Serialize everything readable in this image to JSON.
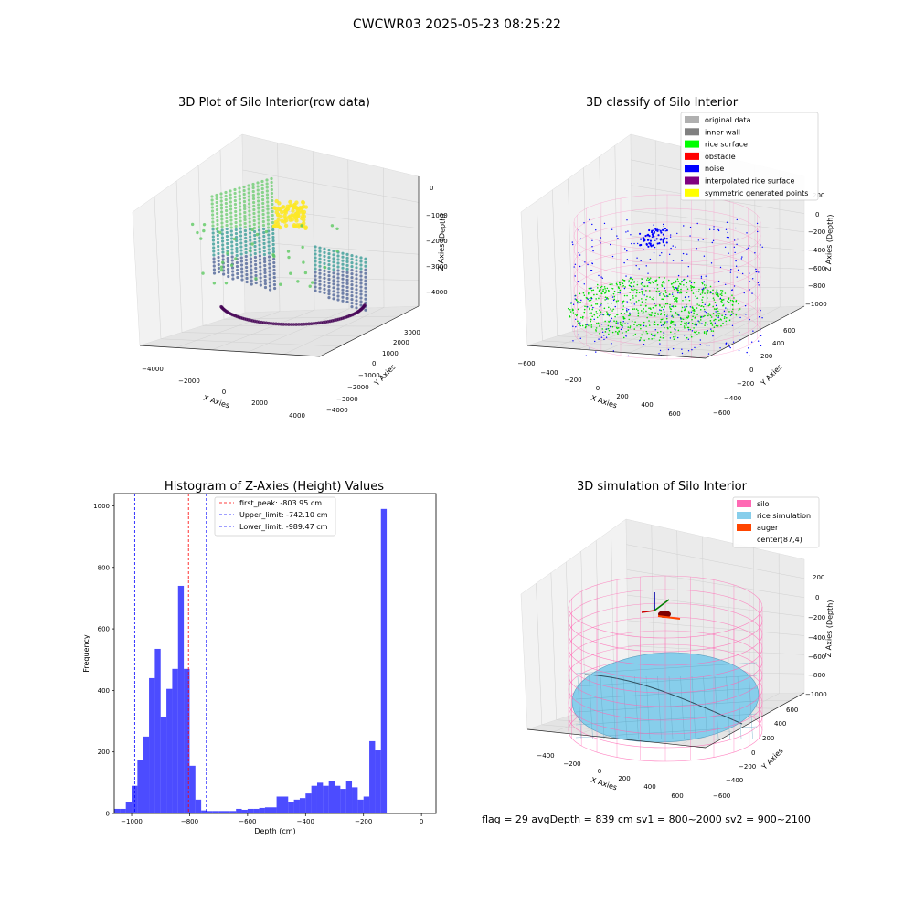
{
  "figure": {
    "suptitle": "CWCWR03 2025-05-23 08:25:22",
    "footer": "flag = 29  avgDepth = 839 cm  sv1 = 800~2000  sv2 = 900~2100"
  },
  "panels": {
    "raw": {
      "title": "3D Plot of Silo Interior(row data)",
      "xlabel": "X Axies",
      "ylabel": "Y Axies",
      "zlabel": "Z Axies (Depth)",
      "xticks": [
        "−4000",
        "−2000",
        "0",
        "2000",
        "4000"
      ],
      "yticks": [
        "−4000",
        "−3000",
        "−2000",
        "−1000",
        "0",
        "1000",
        "2000",
        "3000"
      ],
      "zticks": [
        "0",
        "−1000",
        "−2000",
        "−3000",
        "−4000"
      ]
    },
    "classify": {
      "title": "3D classify of Silo Interior",
      "xlabel": "X Axies",
      "ylabel": "Y Axies",
      "zlabel": "Z Axies (Depth)",
      "xticks": [
        "−600",
        "−400",
        "−200",
        "0",
        "200",
        "400",
        "600"
      ],
      "yticks": [
        "−600",
        "−400",
        "−200",
        "0",
        "200",
        "400",
        "600"
      ],
      "zticks": [
        "200",
        "0",
        "−200",
        "−400",
        "−600",
        "−800",
        "−1000"
      ],
      "legend": [
        {
          "label": "original data",
          "color": "#b0b0b0"
        },
        {
          "label": "inner wall",
          "color": "#808080"
        },
        {
          "label": "rice surface",
          "color": "#00ff00"
        },
        {
          "label": "obstacle",
          "color": "#ff0000"
        },
        {
          "label": "noise",
          "color": "#0000ff"
        },
        {
          "label": "interpolated rice surface",
          "color": "#800080"
        },
        {
          "label": "symmetric generated points",
          "color": "#ffff00"
        }
      ]
    },
    "simulation": {
      "title": "3D simulation of Silo Interior",
      "xlabel": "X Axies",
      "ylabel": "Y Axies",
      "zlabel": "Z Axies (Depth)",
      "xticks": [
        "−400",
        "−200",
        "0",
        "200",
        "400",
        "600"
      ],
      "yticks": [
        "−600",
        "−400",
        "−200",
        "0",
        "200",
        "400",
        "600"
      ],
      "zticks": [
        "200",
        "0",
        "−200",
        "−400",
        "−600",
        "−800",
        "−1000"
      ],
      "legend": [
        {
          "label": "silo",
          "color": "#ff69b4"
        },
        {
          "label": "rice simulation",
          "color": "#87ceeb"
        },
        {
          "label": "auger",
          "color": "#ff4500"
        },
        {
          "label": "center(87,4)",
          "color": "#ffffff"
        }
      ]
    }
  },
  "chart_data": {
    "type": "bar",
    "title": "Histogram of Z-Axies (Height) Values",
    "xlabel": "Depth (cm)",
    "ylabel": "Frequency",
    "xlim": [
      -1060,
      50
    ],
    "ylim": [
      0,
      1040
    ],
    "xticks": [
      -1000,
      -800,
      -600,
      -400,
      -200,
      0
    ],
    "yticks": [
      0,
      200,
      400,
      600,
      800,
      1000
    ],
    "bin_start": -1060,
    "bin_width": 20,
    "bar_color": "#0000ff",
    "values": [
      15,
      15,
      38,
      90,
      175,
      250,
      440,
      535,
      315,
      405,
      470,
      740,
      470,
      155,
      45,
      10,
      8,
      8,
      8,
      8,
      8,
      15,
      12,
      15,
      15,
      18,
      20,
      20,
      55,
      55,
      38,
      45,
      50,
      65,
      90,
      100,
      90,
      105,
      90,
      80,
      105,
      85,
      45,
      55,
      235,
      205,
      990
    ],
    "lines": [
      {
        "label": "first_peak: -803.95 cm",
        "x": -803.95,
        "color": "#ff0000"
      },
      {
        "label": "Upper_limit: -742.10 cm",
        "x": -742.1,
        "color": "#0000ff"
      },
      {
        "label": "Lower_limit: -989.47 cm",
        "x": -989.47,
        "color": "#0000ff"
      }
    ],
    "legend_position": "top-right"
  }
}
